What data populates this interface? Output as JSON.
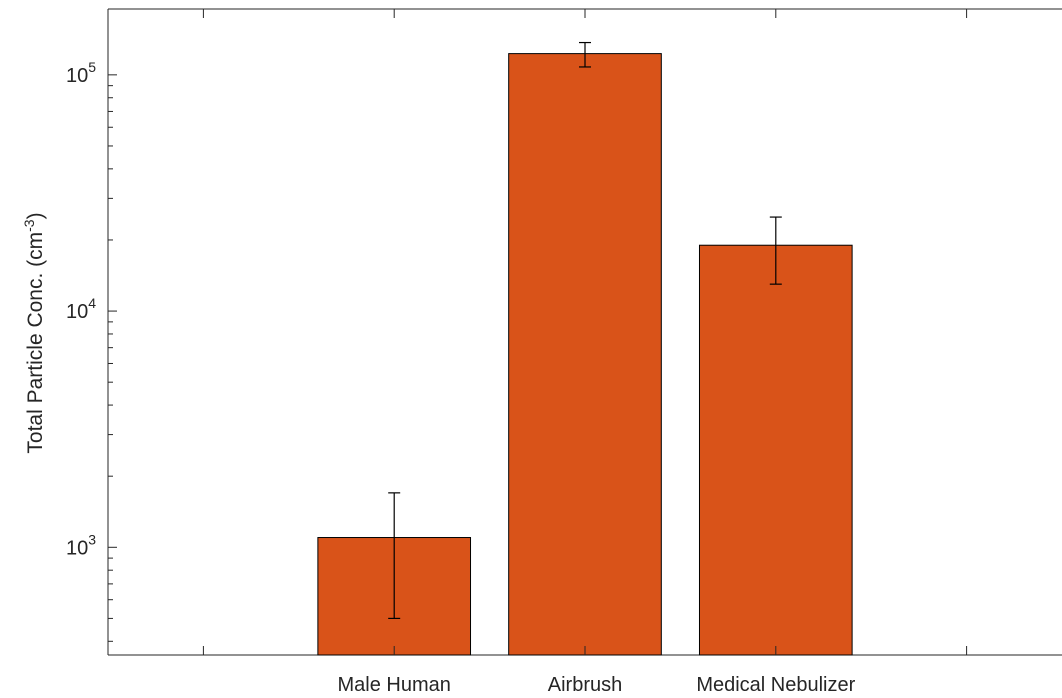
{
  "chart_data": {
    "type": "bar",
    "scale_y": "log",
    "categories": [
      "",
      "Male Human",
      "Airbrush",
      "Medical Nebulizer",
      ""
    ],
    "series": [
      {
        "values": [
          null,
          1100,
          123000,
          19000,
          null
        ],
        "error_low": [
          null,
          500,
          108000,
          13000,
          null
        ],
        "error_high": [
          null,
          1700,
          137000,
          25000,
          null
        ]
      }
    ],
    "ylabel": {
      "main": "Total Particle Conc. (cm",
      "sup": "-3",
      "close": ")"
    },
    "ylim": [
      350,
      190000
    ],
    "yticks": [
      {
        "value": 1000,
        "base": "10",
        "exp": "3"
      },
      {
        "value": 10000,
        "base": "10",
        "exp": "4"
      },
      {
        "value": 100000,
        "base": "10",
        "exp": "5"
      }
    ],
    "grid": false,
    "bar_color": "#d95319",
    "edge_color": "#000000",
    "axis_color": "#262626"
  }
}
